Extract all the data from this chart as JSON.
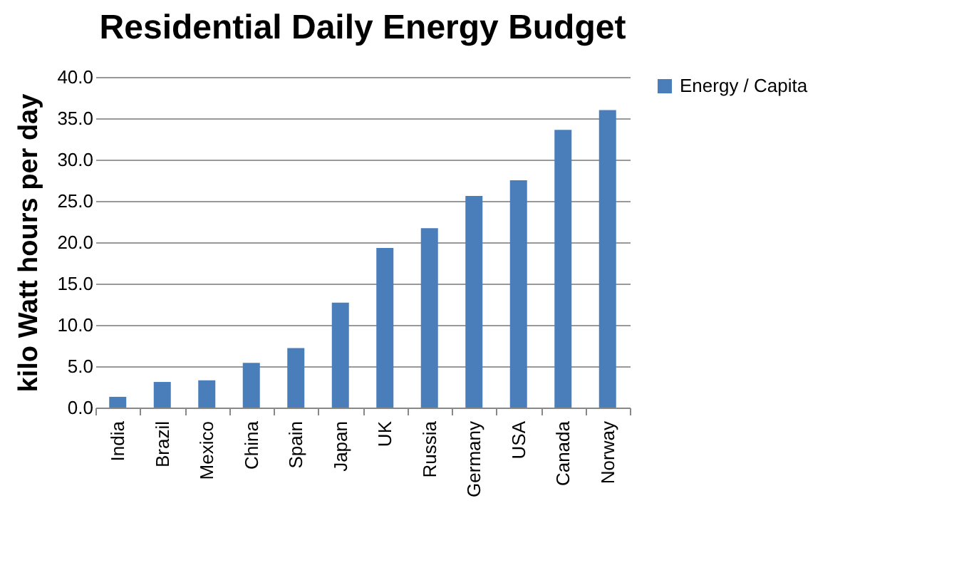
{
  "chart_data": {
    "type": "bar",
    "title": "Residential Daily Energy Budget",
    "ylabel": "kilo Watt hours per day",
    "categories": [
      "India",
      "Brazil",
      "Mexico",
      "China",
      "Spain",
      "Japan",
      "UK",
      "Russia",
      "Germany",
      "USA",
      "Canada",
      "Norway"
    ],
    "series": [
      {
        "name": "Energy / Capita",
        "color": "#4a7ebb",
        "values": [
          1.3,
          3.1,
          3.3,
          5.4,
          7.2,
          12.7,
          19.3,
          21.7,
          25.6,
          27.5,
          33.6,
          36.0
        ]
      }
    ],
    "ylim": [
      0,
      40
    ],
    "yticks": [
      {
        "value": 0,
        "label": "0.0"
      },
      {
        "value": 5,
        "label": "5.0"
      },
      {
        "value": 10,
        "label": "10.0"
      },
      {
        "value": 15,
        "label": "15.0"
      },
      {
        "value": 20,
        "label": "20.0"
      },
      {
        "value": 25,
        "label": "25.0"
      },
      {
        "value": 30,
        "label": "30.0"
      },
      {
        "value": 35,
        "label": "35.0"
      },
      {
        "value": 40,
        "label": "40.0"
      }
    ],
    "grid": "y",
    "legend": "right"
  }
}
